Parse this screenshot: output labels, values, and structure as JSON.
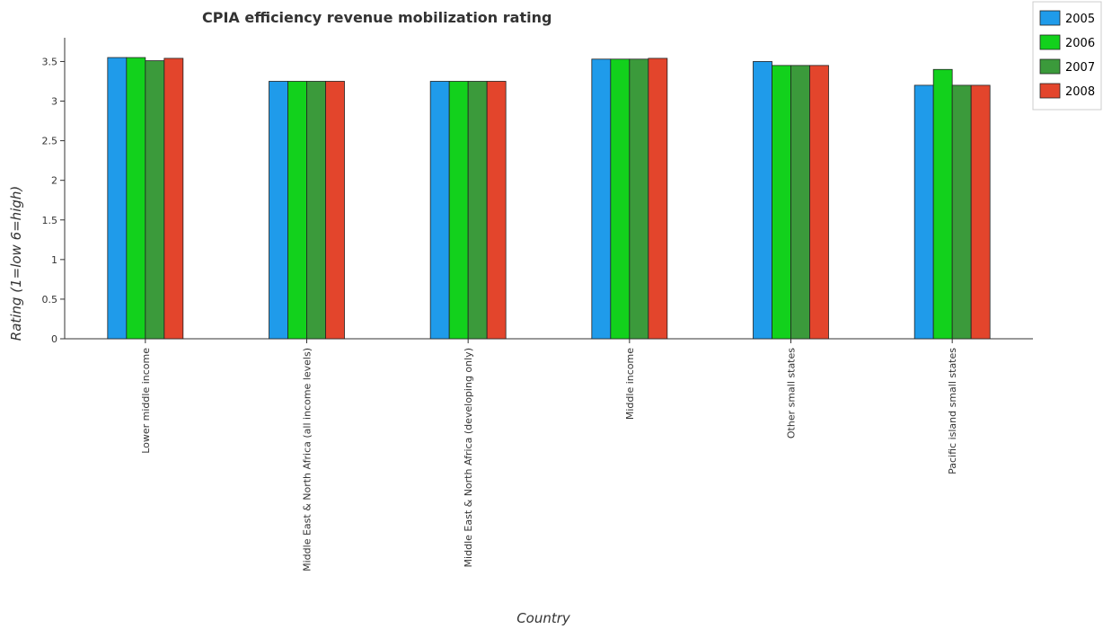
{
  "chart_data": {
    "type": "bar",
    "title": "CPIA efficiency revenue mobilization rating",
    "xlabel": "Country",
    "ylabel": "Rating (1=low 6=high)",
    "ylim": [
      0,
      3.8
    ],
    "yticks": [
      0,
      0.5,
      1,
      1.5,
      2,
      2.5,
      3,
      3.5
    ],
    "ytick_labels": [
      "0",
      "0.5",
      "1",
      "1.5",
      "2",
      "2.5",
      "3",
      "3.5"
    ],
    "categories": [
      "Lower middle income",
      "Middle East & North Africa (all income levels)",
      "Middle East & North Africa (developing only)",
      "Middle income",
      "Other small states",
      "Pacific island small states"
    ],
    "series": [
      {
        "name": "2005",
        "color": "#1f9bea",
        "values": [
          3.55,
          3.25,
          3.25,
          3.53,
          3.5,
          3.2
        ]
      },
      {
        "name": "2006",
        "color": "#12d11c",
        "values": [
          3.55,
          3.25,
          3.25,
          3.53,
          3.45,
          3.4
        ]
      },
      {
        "name": "2007",
        "color": "#3b9a3b",
        "values": [
          3.51,
          3.25,
          3.25,
          3.53,
          3.45,
          3.2
        ]
      },
      {
        "name": "2008",
        "color": "#e3452c",
        "values": [
          3.54,
          3.25,
          3.25,
          3.54,
          3.45,
          3.2
        ]
      }
    ],
    "legend_position": "top-right",
    "grid": false
  }
}
